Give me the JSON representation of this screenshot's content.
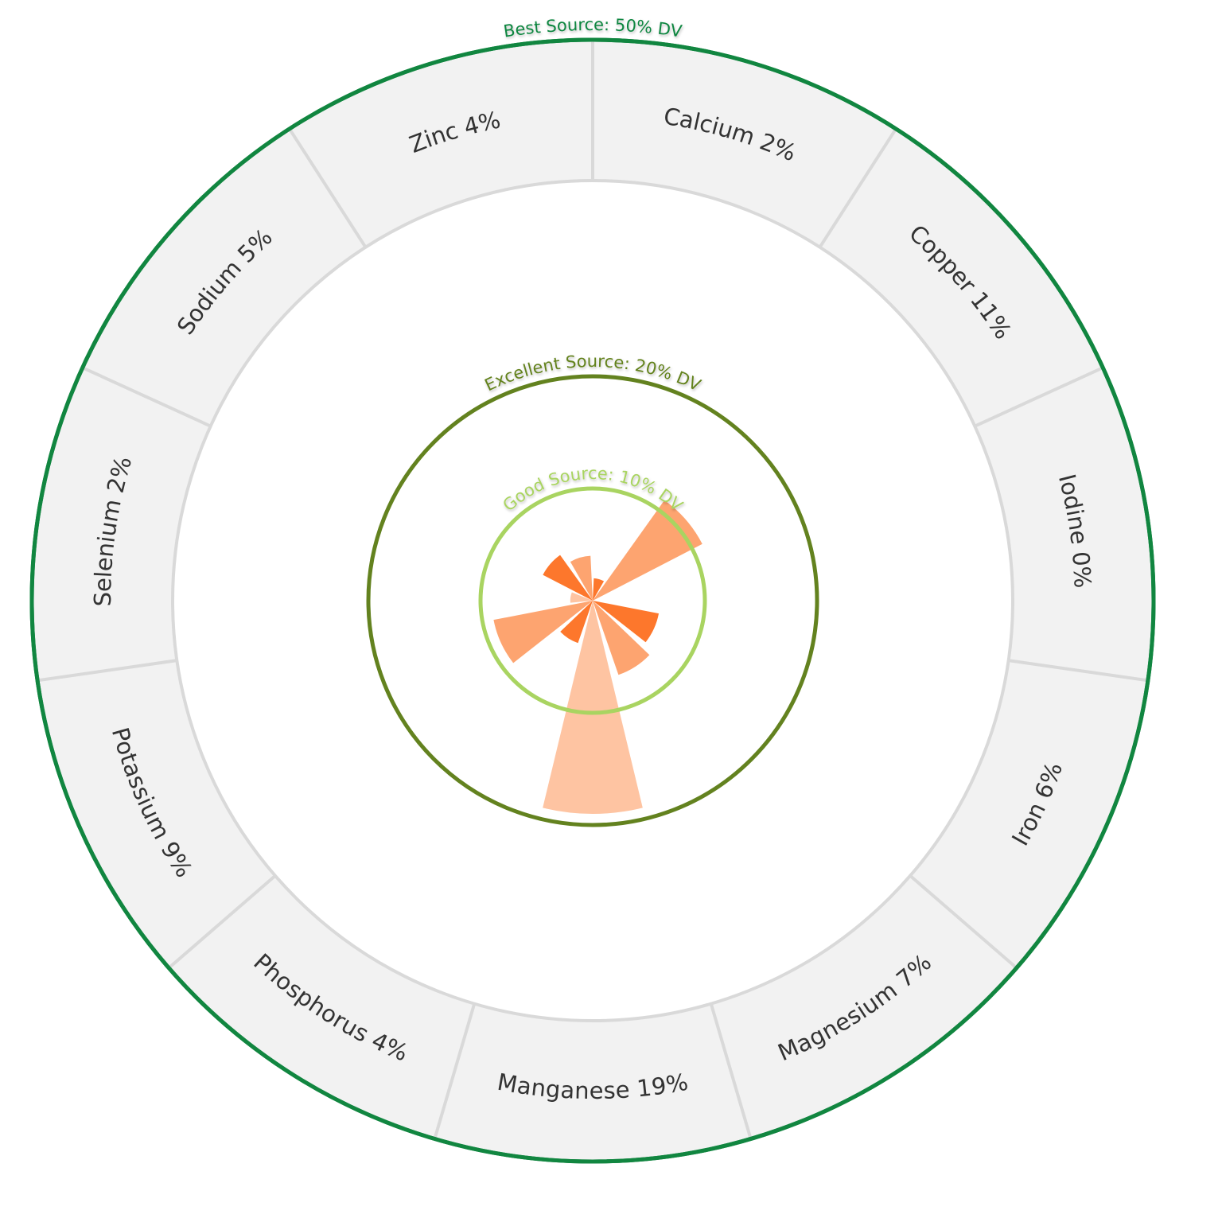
{
  "chart_data": {
    "type": "polar-bar",
    "max_value": 50,
    "categories": [
      "Calcium",
      "Copper",
      "Iodine",
      "Iron",
      "Magnesium",
      "Manganese",
      "Phosphorus",
      "Potassium",
      "Selenium",
      "Sodium",
      "Zinc"
    ],
    "values": [
      2,
      11,
      0,
      6,
      7,
      19,
      4,
      9,
      2,
      5,
      4
    ],
    "labels": [
      "Calcium 2%",
      "Copper 11%",
      "Iodine 0%",
      "Iron 6%",
      "Magnesium 7%",
      "Manganese 19%",
      "Phosphorus 4%",
      "Potassium 9%",
      "Selenium 2%",
      "Sodium 5%",
      "Zinc 4%"
    ],
    "bar_colors": [
      "#fd772c",
      "#fda470",
      "#fec4a2"
    ],
    "thresholds": [
      {
        "label": "Good Source: 10% DV",
        "value": 10,
        "color": "#a9d461"
      },
      {
        "label": "Excellent Source: 20% DV",
        "value": 20,
        "color": "#63821f"
      },
      {
        "label": "Best Source: 50% DV",
        "value": 50,
        "color": "#118640"
      }
    ],
    "ring_color": "#f2f2f2",
    "divider_color": "#d9d9d9"
  }
}
